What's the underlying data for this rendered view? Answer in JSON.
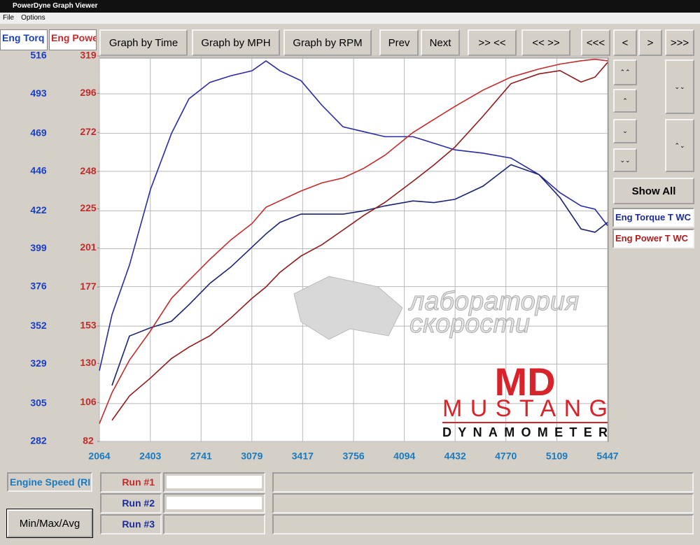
{
  "window": {
    "title": "PowerDyne Graph Viewer",
    "menu": [
      "File",
      "Options"
    ]
  },
  "axis_tabs": [
    "Eng Torq",
    "Eng Powe"
  ],
  "toolbar": [
    "Graph by Time",
    "Graph by MPH",
    "Graph by RPM",
    "Prev",
    "Next",
    ">> <<",
    "<< >>",
    "<<<",
    "<",
    ">",
    ">>>"
  ],
  "side": {
    "show_all": "Show All",
    "legend": [
      "Eng Torque T WC",
      "Eng Power T WC"
    ]
  },
  "bottom": {
    "channel": "Engine Speed (RI",
    "runs": [
      "Run #1",
      "Run #2",
      "Run #3"
    ],
    "button": "Min/Max/Avg"
  },
  "watermark": {
    "line1": "лаборатория",
    "line2": "скорости",
    "logo": "MD",
    "brand": "MUSTANG",
    "sub": "DYNAMOMETER"
  },
  "chart_data": {
    "type": "line",
    "x": [
      2064,
      2148,
      2264,
      2404,
      2544,
      2660,
      2800,
      2940,
      3080,
      3173,
      3266,
      3406,
      3546,
      3686,
      3825,
      3965,
      4152,
      4291,
      4431,
      4618,
      4804,
      4990,
      5130,
      5270,
      5363,
      5447
    ],
    "xlim": [
      2064,
      5447
    ],
    "xticks": [
      2064,
      2403,
      2741,
      3079,
      3417,
      3756,
      4094,
      4432,
      4770,
      5109,
      5447
    ],
    "ylim": [
      282,
      516
    ],
    "yticks": [
      282,
      305,
      329,
      352,
      376,
      399,
      422,
      446,
      469,
      493,
      516
    ],
    "y2lim": [
      82,
      319
    ],
    "y2ticks": [
      82,
      106,
      130,
      153,
      177,
      201,
      225,
      248,
      272,
      296,
      319
    ],
    "grid": true,
    "series": [
      {
        "color": "#2a2aa6",
        "values": [
          325,
          359,
          389,
          435,
          469,
          490,
          500,
          504,
          507,
          513,
          507,
          501,
          486,
          473,
          470,
          467,
          467,
          463,
          459,
          457,
          454,
          444,
          433,
          425,
          423,
          413
        ]
      },
      {
        "color": "#1c2272",
        "values": [
          null,
          316,
          346,
          351,
          355,
          365,
          378,
          388,
          400,
          408,
          415,
          420,
          420,
          420,
          422,
          425,
          428,
          427,
          429,
          437,
          450,
          444,
          430,
          411,
          409,
          415
        ]
      },
      {
        "color": "#c42a2a",
        "axis": "y2",
        "values": [
          93,
          112,
          132,
          150,
          170,
          181,
          194,
          206,
          216,
          226,
          230,
          236,
          241,
          244,
          250,
          258,
          272,
          280,
          288,
          298,
          306,
          311,
          314,
          316,
          317,
          316
        ]
      },
      {
        "color": "#8e1a1a",
        "axis": "y2",
        "values": [
          null,
          95,
          110,
          121,
          133,
          140,
          147,
          158,
          170,
          177,
          186,
          196,
          203,
          212,
          221,
          229,
          242,
          252,
          263,
          282,
          302,
          308,
          310,
          303,
          306,
          315
        ]
      }
    ]
  }
}
